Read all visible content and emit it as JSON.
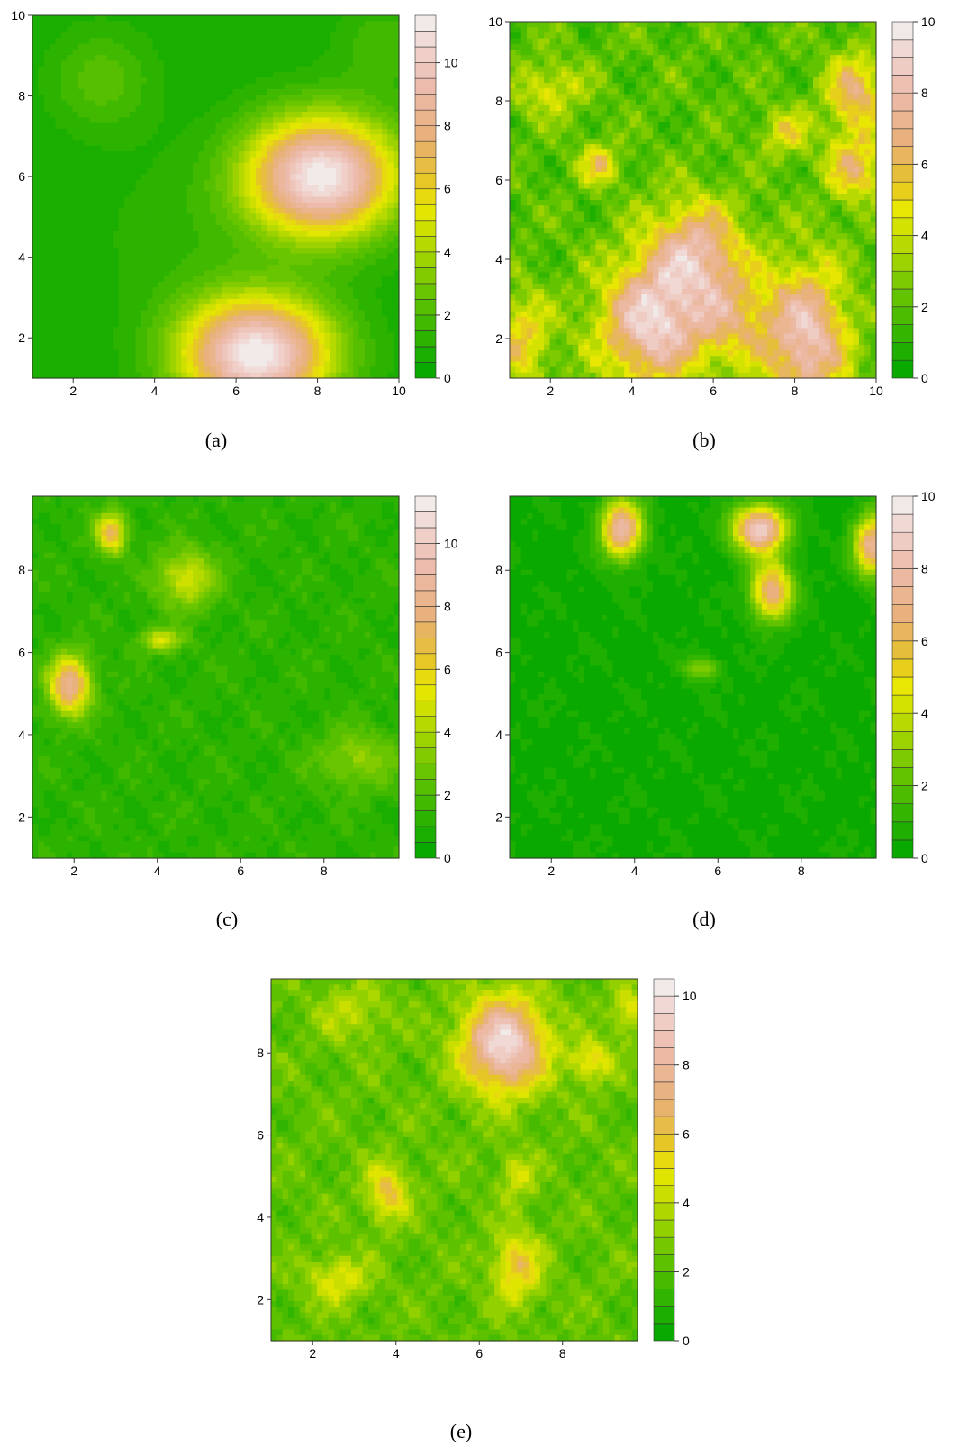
{
  "chart_data": [
    {
      "type": "heatmap",
      "caption": "(a)",
      "xlim": [
        1,
        10
      ],
      "ylim": [
        1,
        10
      ],
      "xticks": [
        2,
        4,
        6,
        8,
        10
      ],
      "yticks": [
        2,
        4,
        6,
        8,
        10
      ],
      "colorbar": {
        "min": 0,
        "max": 11.5,
        "ticks": [
          0,
          2,
          4,
          6,
          8,
          10
        ],
        "levels": 23,
        "placement": "right"
      },
      "peaks": [
        {
          "x": 6.5,
          "y": 1.6,
          "value": 11.5,
          "sx": 1.3,
          "sy": 1.0
        },
        {
          "x": 8.1,
          "y": 6.0,
          "value": 11.4,
          "sx": 1.3,
          "sy": 1.05
        },
        {
          "x": 2.7,
          "y": 8.4,
          "value": 2.3,
          "sx": 0.9,
          "sy": 0.9
        },
        {
          "x": 4.5,
          "y": 4.5,
          "value": 1.2,
          "sx": 1.6,
          "sy": 1.6
        },
        {
          "x": 9.6,
          "y": 9.3,
          "value": 1.8,
          "sx": 0.8,
          "sy": 0.8
        }
      ],
      "base": 0.6,
      "roughness": 0
    },
    {
      "type": "heatmap",
      "caption": "(b)",
      "xlim": [
        1,
        10
      ],
      "ylim": [
        1,
        10
      ],
      "xticks": [
        2,
        4,
        6,
        8,
        10
      ],
      "yticks": [
        2,
        4,
        6,
        8,
        10
      ],
      "colorbar": {
        "min": 0,
        "max": 10,
        "ticks": [
          0,
          2,
          4,
          6,
          8,
          10
        ],
        "levels": 20,
        "placement": "right"
      },
      "peaks": [
        {
          "x": 4.5,
          "y": 2.4,
          "value": 9.0,
          "sx": 0.9,
          "sy": 1.1
        },
        {
          "x": 8.3,
          "y": 2.0,
          "value": 8.5,
          "sx": 0.7,
          "sy": 1.3
        },
        {
          "x": 5.6,
          "y": 4.2,
          "value": 7.5,
          "sx": 0.8,
          "sy": 0.9
        },
        {
          "x": 9.5,
          "y": 8.2,
          "value": 6.5,
          "sx": 0.5,
          "sy": 0.7
        },
        {
          "x": 9.5,
          "y": 6.3,
          "value": 6.0,
          "sx": 0.5,
          "sy": 0.6
        },
        {
          "x": 3.2,
          "y": 6.4,
          "value": 5.5,
          "sx": 0.35,
          "sy": 0.35
        },
        {
          "x": 2.0,
          "y": 8.3,
          "value": 4.5,
          "sx": 0.6,
          "sy": 0.5
        },
        {
          "x": 1.3,
          "y": 2.0,
          "value": 5.5,
          "sx": 0.5,
          "sy": 0.8
        },
        {
          "x": 7.8,
          "y": 7.2,
          "value": 5.0,
          "sx": 0.4,
          "sy": 0.4
        },
        {
          "x": 6.5,
          "y": 2.5,
          "value": 5.5,
          "sx": 0.7,
          "sy": 0.8
        }
      ],
      "base": 2.0,
      "roughness": 1.6
    },
    {
      "type": "heatmap",
      "caption": "(c)",
      "xlim": [
        1,
        9.8
      ],
      "ylim": [
        1,
        9.8
      ],
      "xticks": [
        2,
        4,
        6,
        8
      ],
      "yticks": [
        2,
        4,
        6,
        8
      ],
      "colorbar": {
        "min": 0,
        "max": 11.5,
        "ticks": [
          0,
          2,
          4,
          6,
          8,
          10
        ],
        "levels": 23,
        "placement": "right"
      },
      "peaks": [
        {
          "x": 1.9,
          "y": 5.2,
          "value": 8.5,
          "sx": 0.35,
          "sy": 0.5
        },
        {
          "x": 2.9,
          "y": 8.9,
          "value": 7.0,
          "sx": 0.25,
          "sy": 0.35
        },
        {
          "x": 4.7,
          "y": 7.8,
          "value": 5.0,
          "sx": 0.5,
          "sy": 0.5
        },
        {
          "x": 4.1,
          "y": 6.3,
          "value": 5.0,
          "sx": 0.35,
          "sy": 0.2
        },
        {
          "x": 8.8,
          "y": 3.4,
          "value": 3.5,
          "sx": 0.7,
          "sy": 0.5
        }
      ],
      "base": 1.2,
      "roughness": 0.7
    },
    {
      "type": "heatmap",
      "caption": "(d)",
      "xlim": [
        1,
        9.8
      ],
      "ylim": [
        1,
        9.8
      ],
      "xticks": [
        2,
        4,
        6,
        8
      ],
      "yticks": [
        2,
        4,
        6,
        8
      ],
      "colorbar": {
        "min": 0,
        "max": 10,
        "ticks": [
          0,
          2,
          4,
          6,
          8,
          10
        ],
        "levels": 20,
        "placement": "right"
      },
      "peaks": [
        {
          "x": 3.7,
          "y": 9.0,
          "value": 8.0,
          "sx": 0.35,
          "sy": 0.5
        },
        {
          "x": 7.0,
          "y": 9.0,
          "value": 9.0,
          "sx": 0.45,
          "sy": 0.4
        },
        {
          "x": 7.3,
          "y": 7.5,
          "value": 7.0,
          "sx": 0.35,
          "sy": 0.5
        },
        {
          "x": 9.7,
          "y": 8.6,
          "value": 7.5,
          "sx": 0.3,
          "sy": 0.5
        },
        {
          "x": 5.6,
          "y": 5.6,
          "value": 3.0,
          "sx": 0.3,
          "sy": 0.2
        }
      ],
      "base": 0.4,
      "roughness": 0.4
    },
    {
      "type": "heatmap",
      "caption": "(e)",
      "xlim": [
        1,
        9.8
      ],
      "ylim": [
        1,
        9.8
      ],
      "xticks": [
        2,
        4,
        6,
        8
      ],
      "yticks": [
        2,
        4,
        6,
        8
      ],
      "colorbar": {
        "min": 0,
        "max": 10.5,
        "ticks": [
          0,
          2,
          4,
          6,
          8,
          10
        ],
        "levels": 21,
        "placement": "right"
      },
      "peaks": [
        {
          "x": 6.6,
          "y": 8.2,
          "value": 10.0,
          "sx": 0.7,
          "sy": 0.8
        },
        {
          "x": 3.8,
          "y": 4.6,
          "value": 6.0,
          "sx": 0.35,
          "sy": 0.5
        },
        {
          "x": 6.9,
          "y": 2.8,
          "value": 6.0,
          "sx": 0.4,
          "sy": 0.6
        },
        {
          "x": 2.6,
          "y": 2.5,
          "value": 5.0,
          "sx": 0.5,
          "sy": 0.4
        },
        {
          "x": 8.7,
          "y": 7.8,
          "value": 5.5,
          "sx": 0.35,
          "sy": 0.35
        },
        {
          "x": 9.6,
          "y": 9.0,
          "value": 5.0,
          "sx": 0.3,
          "sy": 0.4
        },
        {
          "x": 6.9,
          "y": 5.0,
          "value": 4.5,
          "sx": 0.3,
          "sy": 0.4
        },
        {
          "x": 3.0,
          "y": 9.0,
          "value": 4.0,
          "sx": 0.6,
          "sy": 0.5
        }
      ],
      "base": 2.3,
      "roughness": 1.2
    }
  ]
}
